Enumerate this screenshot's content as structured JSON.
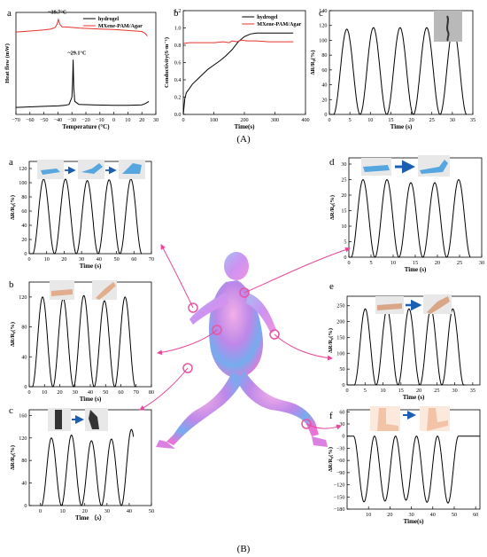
{
  "section_labels": {
    "A": "(A)",
    "B": "(B)"
  },
  "chart_data": [
    {
      "id": "A-a",
      "panel": "a",
      "type": "line",
      "xlabel": "Temperature (°C)",
      "ylabel": "Heat flow (mW)",
      "xlim": [
        -70,
        30
      ],
      "xticks": [
        -70,
        -60,
        -50,
        -40,
        -30,
        -20,
        -10,
        0,
        10,
        20,
        30
      ],
      "legend": "top-right",
      "series": [
        {
          "name": "hydrogel",
          "color": "#000000",
          "x": [
            -70,
            -60,
            -50,
            -40,
            -35,
            -32,
            -30,
            -29.5,
            -29.1,
            -28.7,
            -28,
            -25,
            -15,
            0,
            10,
            20,
            22,
            24,
            25
          ],
          "y": [
            1,
            1.1,
            1.2,
            1.3,
            1.4,
            1.6,
            3,
            6,
            10.5,
            5,
            2.2,
            1.6,
            1.5,
            1.4,
            1.4,
            1.5,
            1.7,
            2,
            2.2
          ]
        },
        {
          "name": "MXene-PAM/Agar",
          "color": "#e8312c",
          "x": [
            -70,
            -60,
            -50,
            -45,
            -42,
            -40.5,
            -39.7,
            -38.5,
            -37,
            -34,
            -25,
            -10,
            0,
            10,
            20,
            22,
            24
          ],
          "y": [
            16,
            16.2,
            16.4,
            16.6,
            16.9,
            17.6,
            18.5,
            17.5,
            17,
            17,
            16.8,
            16.6,
            16.5,
            16.3,
            16.1,
            15.8,
            15.2
          ]
        }
      ],
      "annotations": [
        "~39.7°C",
        "~29.1°C"
      ]
    },
    {
      "id": "A-b",
      "panel": "b",
      "type": "line",
      "xlabel": "Time(s)",
      "ylabel": "Conductivity(S·m⁻¹)",
      "xlim": [
        0,
        400
      ],
      "ylim": [
        0.0,
        1.2
      ],
      "xticks": [
        0,
        100,
        200,
        300,
        400
      ],
      "yticks": [
        0.0,
        0.2,
        0.4,
        0.6,
        0.8,
        1.0,
        1.2
      ],
      "ytick_labels": [
        "0.0",
        "0.2",
        "0.4",
        "0.6",
        "0.8",
        "1.0",
        "1.2"
      ],
      "legend": "top-right",
      "series": [
        {
          "name": "hydrogel",
          "color": "#000000",
          "x": [
            0,
            5,
            10,
            20,
            30,
            50,
            80,
            100,
            120,
            140,
            160,
            180,
            200,
            220,
            240,
            260,
            300,
            360
          ],
          "y": [
            0,
            0.18,
            0.25,
            0.3,
            0.35,
            0.42,
            0.52,
            0.57,
            0.62,
            0.68,
            0.75,
            0.84,
            0.9,
            0.93,
            0.94,
            0.94,
            0.94,
            0.94
          ]
        },
        {
          "name": "MXene-PAM/Agar",
          "color": "#e8312c",
          "x": [
            0,
            20,
            50,
            100,
            130,
            150,
            160,
            175,
            190,
            210,
            240,
            280,
            320,
            360
          ],
          "y": [
            0.82,
            0.83,
            0.83,
            0.83,
            0.84,
            0.83,
            0.85,
            0.84,
            0.86,
            0.85,
            0.85,
            0.84,
            0.84,
            0.84
          ]
        }
      ]
    },
    {
      "id": "A-c",
      "panel": "c",
      "type": "line",
      "xlabel": "Time (s)",
      "ylabel": "ΔR/R₀(%)",
      "xlim": [
        0,
        35
      ],
      "ylim": [
        0,
        140
      ],
      "xticks": [
        0,
        5,
        10,
        15,
        20,
        25,
        30,
        35
      ],
      "yticks": [
        0,
        20,
        40,
        60,
        80,
        100,
        120,
        140
      ],
      "wave": {
        "start": 1.0,
        "period": 6.5,
        "peaks": [
          115,
          117,
          117,
          117,
          117
        ],
        "base": 0,
        "end": 33.5
      }
    },
    {
      "id": "B-a",
      "panel": "a",
      "type": "line",
      "xlabel": "Time (s)",
      "ylabel": "ΔR/R₀(%)",
      "xlim": [
        0,
        70
      ],
      "ylim": [
        0,
        130
      ],
      "xticks": [
        0,
        10,
        20,
        30,
        40,
        50,
        60,
        70
      ],
      "yticks": [
        0,
        20,
        40,
        60,
        80,
        100,
        120
      ],
      "wave": {
        "start": 2.0,
        "period": 12.5,
        "peaks": [
          105,
          105,
          103,
          104,
          105
        ],
        "base": 0,
        "end": 64.5
      }
    },
    {
      "id": "B-b",
      "panel": "b",
      "type": "line",
      "xlabel": "Time (s)",
      "ylabel": "ΔR/R₀(%)",
      "xlim": [
        0,
        80
      ],
      "ylim": [
        0,
        140
      ],
      "xticks": [
        0,
        10,
        20,
        30,
        40,
        50,
        60,
        70,
        80
      ],
      "yticks": [
        0,
        40,
        80,
        120
      ],
      "wave": {
        "start": 2.0,
        "period": 13.5,
        "peaks": [
          120,
          118,
          122,
          115,
          120
        ],
        "base": 0,
        "end": 70
      }
    },
    {
      "id": "B-c",
      "panel": "c",
      "type": "line",
      "xlabel": "Time （s）",
      "ylabel": "ΔR/R₀(%)",
      "xlim": [
        -5,
        50
      ],
      "ylim": [
        0,
        170
      ],
      "xticks": [
        0,
        10,
        20,
        30,
        40,
        50
      ],
      "yticks": [
        0,
        40,
        80,
        120,
        160
      ],
      "wave": {
        "start": 0.5,
        "period": 9.0,
        "peaks": [
          120,
          125,
          115,
          118,
          135
        ],
        "base": 0,
        "end": 42
      }
    },
    {
      "id": "B-d",
      "panel": "d",
      "type": "line",
      "xlabel": "Time (s)",
      "ylabel": "ΔR/R₀(%)",
      "xlim": [
        0,
        30
      ],
      "ylim": [
        0,
        32
      ],
      "xticks": [
        0,
        5,
        10,
        15,
        20,
        25,
        30
      ],
      "yticks": [
        0,
        5,
        10,
        15,
        20,
        25,
        30
      ],
      "wave": {
        "start": 0.5,
        "period": 5.4,
        "peaks": [
          25,
          25,
          24,
          24,
          25
        ],
        "base": 0,
        "end": 27.5
      }
    },
    {
      "id": "B-e",
      "panel": "e",
      "type": "line",
      "xlabel": "Time (s)",
      "ylabel": "ΔR/R₀(%)",
      "xlim": [
        0,
        37
      ],
      "ylim": [
        0,
        280
      ],
      "xticks": [
        0,
        5,
        10,
        15,
        20,
        25,
        30,
        35
      ],
      "yticks": [
        0,
        50,
        100,
        150,
        200,
        250
      ],
      "wave": {
        "start": 2.0,
        "period": 6.1,
        "peaks": [
          240,
          240,
          240,
          240,
          240
        ],
        "base": 0,
        "end": 33
      }
    },
    {
      "id": "B-f",
      "panel": "f",
      "type": "line",
      "xlabel": "Time(s)",
      "ylabel": "ΔR/R₀(%)",
      "xlim": [
        0,
        62
      ],
      "ylim": [
        -180,
        65
      ],
      "xticks": [
        10,
        20,
        30,
        40,
        50,
        60
      ],
      "yticks": [
        -180,
        -150,
        -120,
        -90,
        -60,
        -30,
        0,
        30,
        60
      ],
      "wave": {
        "start": 3.0,
        "period": 9.8,
        "peaks": [
          -162,
          -160,
          -158,
          -163,
          -165
        ],
        "base": 0,
        "end": 62,
        "inverted": true
      }
    }
  ]
}
